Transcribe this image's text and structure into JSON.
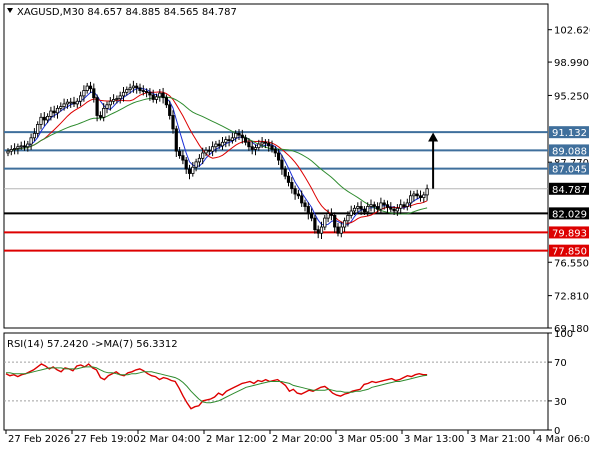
{
  "chart_data": [
    {
      "type": "candlestick",
      "title": "XAGUSD,M30  84.657 84.885 84.565 84.787",
      "ylim": [
        69.18,
        105.5
      ],
      "y_ticks": [
        "102.620",
        "98.990",
        "95.250",
        "87.770",
        "76.550",
        "72.810",
        "69.180"
      ],
      "x_ticks": [
        "27 Feb 2026",
        "27 Feb 19:00",
        "2 Mar 04:00",
        "2 Mar 12:00",
        "2 Mar 20:00",
        "3 Mar 05:00",
        "3 Mar 13:00",
        "3 Mar 21:00",
        "4 Mar 06:00"
      ],
      "x_tick_index": [
        0,
        20,
        40,
        60,
        80,
        100,
        120,
        140,
        160
      ],
      "last_price": "84.787",
      "levels": [
        {
          "label": "91.132",
          "value": 91.132,
          "color": "#3f6f9c"
        },
        {
          "label": "89.088",
          "value": 89.088,
          "color": "#3f6f9c"
        },
        {
          "label": "87.045",
          "value": 87.045,
          "color": "#3f6f9c"
        },
        {
          "label": "82.029",
          "value": 82.029,
          "color": "#000000"
        },
        {
          "label": "79.893",
          "value": 79.893,
          "color": "#dd0000"
        },
        {
          "label": "77.850",
          "value": 77.85,
          "color": "#dd0000"
        }
      ],
      "arrow": {
        "from": 84.8,
        "to": 91.1
      },
      "close": [
        89.0,
        89.2,
        89.3,
        89.5,
        89.6,
        89.5,
        89.8,
        90.5,
        91.0,
        92.0,
        92.8,
        92.5,
        92.9,
        93.5,
        93.3,
        93.8,
        94.0,
        94.3,
        94.5,
        94.5,
        94.3,
        94.6,
        95.2,
        95.8,
        96.3,
        96.0,
        95.0,
        93.0,
        92.8,
        93.8,
        94.2,
        94.6,
        94.8,
        94.9,
        95.2,
        95.6,
        95.9,
        96.1,
        96.3,
        96.1,
        95.8,
        95.7,
        95.6,
        95.3,
        94.8,
        95.1,
        95.5,
        95.0,
        94.2,
        93.0,
        91.5,
        89.0,
        88.5,
        88.0,
        87.0,
        86.5,
        87.2,
        87.8,
        88.2,
        88.8,
        89.1,
        89.0,
        89.5,
        89.8,
        89.6,
        90.0,
        90.3,
        90.2,
        90.5,
        91.0,
        90.8,
        90.5,
        90.0,
        89.5,
        89.2,
        89.4,
        89.8,
        90.0,
        89.9,
        89.6,
        89.2,
        88.8,
        88.0,
        87.0,
        86.2,
        85.5,
        84.8,
        84.2,
        84.0,
        83.2,
        82.8,
        82.0,
        81.5,
        80.2,
        79.8,
        80.5,
        81.5,
        82.0,
        81.8,
        80.5,
        79.8,
        80.5,
        81.2,
        81.8,
        82.3,
        82.6,
        82.8,
        82.5,
        82.2,
        82.8,
        83.0,
        82.8,
        82.5,
        83.2,
        83.0,
        82.7,
        82.5,
        82.3,
        82.6,
        83.0,
        82.8,
        83.2,
        84.0,
        84.2,
        84.0,
        83.8,
        84.1,
        84.787
      ],
      "indicator": {
        "type": "line",
        "title": "RSI(14) 57.2420  ->MA(7) 56.3312",
        "ylim": [
          0,
          100
        ],
        "y_ticks": [
          "100",
          "70",
          "30",
          "0"
        ],
        "levels": [
          70,
          30
        ],
        "series": [
          {
            "name": "RSI(14)",
            "color": "#dd0000",
            "values": [
              58,
              56,
              57,
              55,
              57,
              58,
              60,
              62,
              65,
              68,
              66,
              63,
              65,
              62,
              60,
              64,
              63,
              61,
              66,
              67,
              65,
              68,
              64,
              62,
              54,
              52,
              56,
              58,
              60,
              57,
              56,
              59,
              60,
              62,
              63,
              61,
              58,
              56,
              55,
              52,
              54,
              53,
              51,
              50,
              43,
              35,
              28,
              22,
              24,
              25,
              30,
              31,
              32,
              34,
              38,
              36,
              40,
              42,
              44,
              46,
              48,
              49,
              50,
              48,
              51,
              50,
              52,
              50,
              51,
              52,
              49,
              46,
              40,
              42,
              38,
              37,
              39,
              41,
              40,
              42,
              44,
              45,
              42,
              38,
              36,
              35,
              37,
              38,
              40,
              41,
              42,
              47,
              48,
              50,
              49,
              50,
              51,
              52,
              53,
              51,
              52,
              54,
              56,
              55,
              57,
              58,
              57,
              57
            ]
          },
          {
            "name": "MA(7)",
            "color": "#2e8b2e",
            "values": [
              59,
              59,
              58,
              58,
              58,
              58,
              59,
              60,
              61,
              62,
              63,
              64,
              64,
              64,
              64,
              63,
              63,
              63,
              63,
              64,
              65,
              65,
              65,
              64,
              62,
              60,
              59,
              59,
              58,
              57,
              57,
              57,
              58,
              58,
              59,
              60,
              60,
              60,
              59,
              58,
              57,
              56,
              55,
              54,
              52,
              49,
              45,
              40,
              36,
              32,
              29,
              28,
              28,
              29,
              30,
              32,
              34,
              36,
              38,
              40,
              42,
              44,
              45,
              46,
              47,
              48,
              49,
              50,
              50,
              50,
              50,
              49,
              48,
              46,
              45,
              44,
              43,
              42,
              41,
              41,
              41,
              41,
              42,
              41,
              40,
              40,
              39,
              39,
              39,
              40,
              40,
              41,
              42,
              44,
              45,
              46,
              47,
              48,
              49,
              50,
              50,
              51,
              52,
              53,
              54,
              55,
              56,
              56.3
            ]
          }
        ]
      }
    }
  ]
}
